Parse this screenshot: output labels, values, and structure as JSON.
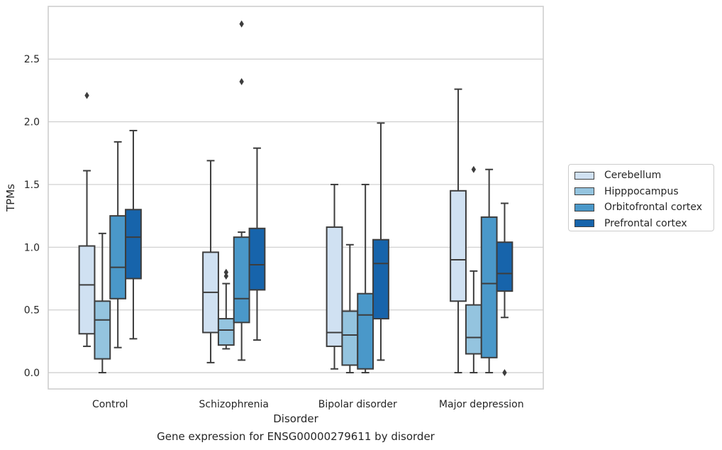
{
  "caption": "Gene expression for ENSG00000279611 by disorder",
  "chart_data": {
    "type": "box",
    "title": "",
    "xlabel": "Disorder",
    "ylabel": "TPMs",
    "categories": [
      "Control",
      "Schizophrenia",
      "Bipolar disorder",
      "Major depression"
    ],
    "ylim": [
      -0.13,
      2.92
    ],
    "yticks": [
      0.0,
      0.5,
      1.0,
      1.5,
      2.0,
      2.5
    ],
    "ytick_labels": [
      "0.0",
      "0.5",
      "1.0",
      "1.5",
      "2.0",
      "2.5"
    ],
    "grid": "horizontal",
    "legend_placement": "right",
    "series": [
      {
        "name": "Cerebellum",
        "color": "#d0e1f2",
        "boxes": [
          {
            "q1": 0.31,
            "median": 0.7,
            "q3": 1.01,
            "whislo": 0.21,
            "whishi": 1.61,
            "fliers": [
              2.21
            ]
          },
          {
            "q1": 0.32,
            "median": 0.64,
            "q3": 0.96,
            "whislo": 0.08,
            "whishi": 1.69,
            "fliers": []
          },
          {
            "q1": 0.21,
            "median": 0.32,
            "q3": 1.16,
            "whislo": 0.03,
            "whishi": 1.5,
            "fliers": []
          },
          {
            "q1": 0.57,
            "median": 0.9,
            "q3": 1.45,
            "whislo": 0.0,
            "whishi": 2.26,
            "fliers": []
          }
        ]
      },
      {
        "name": "Hipppocampus",
        "color": "#94c4df",
        "boxes": [
          {
            "q1": 0.11,
            "median": 0.42,
            "q3": 0.57,
            "whislo": 0.0,
            "whishi": 1.11,
            "fliers": []
          },
          {
            "q1": 0.22,
            "median": 0.34,
            "q3": 0.43,
            "whislo": 0.19,
            "whishi": 0.71,
            "fliers": [
              0.77,
              0.8
            ]
          },
          {
            "q1": 0.06,
            "median": 0.3,
            "q3": 0.49,
            "whislo": 0.0,
            "whishi": 1.02,
            "fliers": []
          },
          {
            "q1": 0.15,
            "median": 0.28,
            "q3": 0.54,
            "whislo": 0.0,
            "whishi": 0.81,
            "fliers": [
              1.62
            ]
          }
        ]
      },
      {
        "name": "Orbitofrontal cortex",
        "color": "#4a98c9",
        "boxes": [
          {
            "q1": 0.59,
            "median": 0.84,
            "q3": 1.25,
            "whislo": 0.2,
            "whishi": 1.84,
            "fliers": []
          },
          {
            "q1": 0.4,
            "median": 0.59,
            "q3": 1.08,
            "whislo": 0.1,
            "whishi": 1.12,
            "fliers": [
              2.32,
              2.78
            ]
          },
          {
            "q1": 0.03,
            "median": 0.46,
            "q3": 0.63,
            "whislo": 0.0,
            "whishi": 1.5,
            "fliers": []
          },
          {
            "q1": 0.12,
            "median": 0.71,
            "q3": 1.24,
            "whislo": 0.0,
            "whishi": 1.62,
            "fliers": []
          }
        ]
      },
      {
        "name": "Prefrontal cortex",
        "color": "#1764ab",
        "boxes": [
          {
            "q1": 0.75,
            "median": 1.08,
            "q3": 1.3,
            "whislo": 0.27,
            "whishi": 1.93,
            "fliers": []
          },
          {
            "q1": 0.66,
            "median": 0.86,
            "q3": 1.15,
            "whislo": 0.26,
            "whishi": 1.79,
            "fliers": []
          },
          {
            "q1": 0.43,
            "median": 0.87,
            "q3": 1.06,
            "whislo": 0.1,
            "whishi": 1.99,
            "fliers": []
          },
          {
            "q1": 0.65,
            "median": 0.79,
            "q3": 1.04,
            "whislo": 0.44,
            "whishi": 1.35,
            "fliers": [
              0.0
            ]
          }
        ]
      }
    ]
  }
}
